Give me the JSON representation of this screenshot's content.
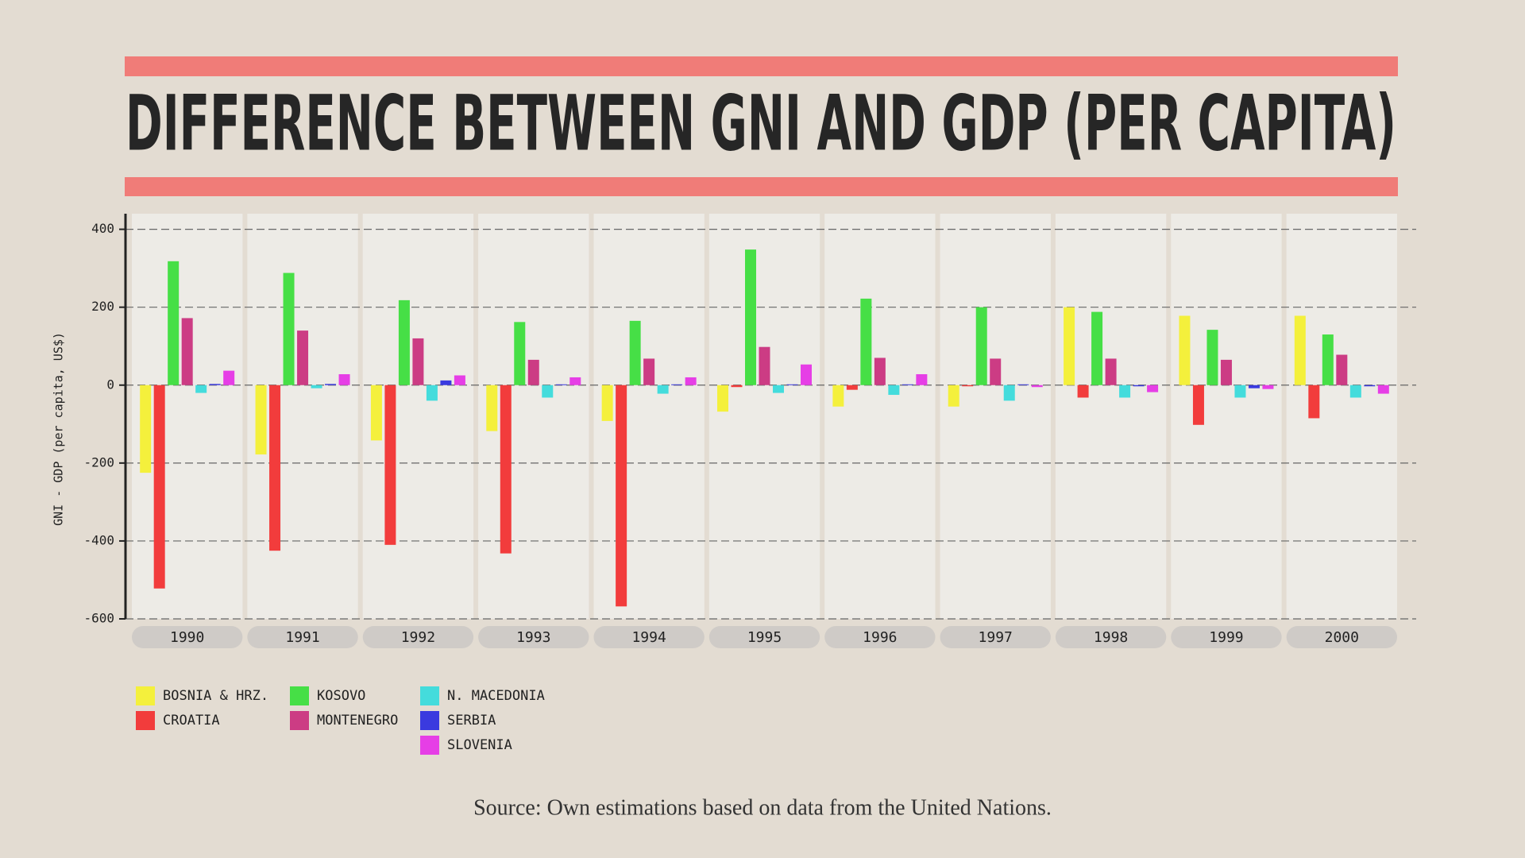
{
  "chart_data": {
    "type": "bar",
    "title": "DIFFERENCE BETWEEN GNI AND GDP (PER CAPITA)",
    "y_label": "GNI - GDP (per capita, US$)",
    "source": "Source: Own estimations based on data from the United Nations.",
    "categories": [
      "1990",
      "1991",
      "1992",
      "1993",
      "1994",
      "1995",
      "1996",
      "1997",
      "1998",
      "1999",
      "2000"
    ],
    "series": [
      {
        "name": "BOSNIA & HRZ.",
        "color": "#f4f03c",
        "values": [
          -225,
          -178,
          -142,
          -118,
          -92,
          -68,
          -55,
          -55,
          200,
          178,
          178
        ]
      },
      {
        "name": "CROATIA",
        "color": "#f23c3c",
        "values": [
          -522,
          -425,
          -410,
          -432,
          -568,
          -5,
          -12,
          -3,
          -32,
          -102,
          -85
        ]
      },
      {
        "name": "KOSOVO",
        "color": "#46df46",
        "values": [
          318,
          288,
          218,
          162,
          165,
          348,
          222,
          200,
          188,
          142,
          130
        ]
      },
      {
        "name": "MONTENEGRO",
        "color": "#cc3c84",
        "values": [
          172,
          140,
          120,
          65,
          68,
          98,
          70,
          68,
          68,
          65,
          78
        ]
      },
      {
        "name": "N. MACEDONIA",
        "color": "#44dcdc",
        "values": [
          -20,
          -8,
          -40,
          -32,
          -22,
          -20,
          -25,
          -40,
          -32,
          -32,
          -32
        ]
      },
      {
        "name": "SERBIA",
        "color": "#3a3adf",
        "values": [
          3,
          3,
          12,
          2,
          2,
          2,
          2,
          2,
          -3,
          -8,
          -3
        ]
      },
      {
        "name": "SLOVENIA",
        "color": "#e63ee6",
        "values": [
          37,
          28,
          25,
          20,
          20,
          53,
          28,
          -5,
          -18,
          -10,
          -22
        ]
      }
    ],
    "ylim": [
      -600,
      440
    ],
    "yticks": [
      -600,
      -400,
      -200,
      0,
      200,
      400
    ],
    "grid": true
  }
}
